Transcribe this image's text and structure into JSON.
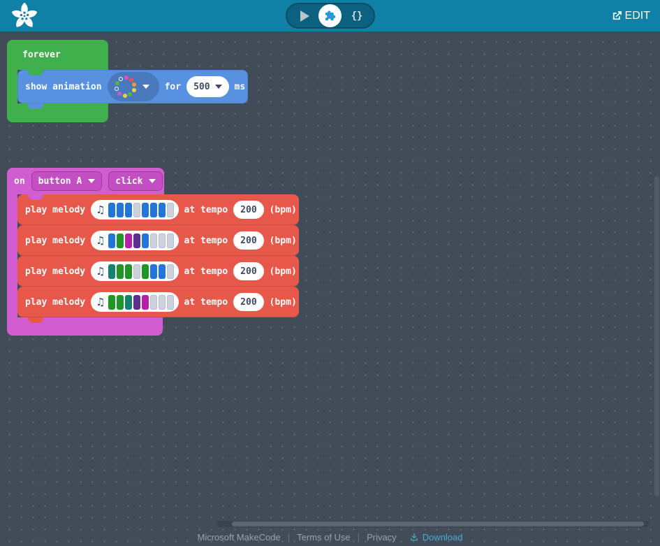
{
  "header": {
    "edit_label": "EDIT"
  },
  "sim_toolbar": {
    "js_button_label": "{}"
  },
  "workspace": {
    "forever_block": {
      "label": "forever",
      "show_animation": {
        "prefix": "show animation",
        "for_label": "for",
        "duration": "500",
        "unit": "ms",
        "animation_dots": [
          "outline",
          "#e052c4",
          "#ef4e4e",
          "#f59a23",
          "#f7d038",
          "#4db748",
          "#f7d038",
          "#c05cd8",
          "outline",
          "#4db748"
        ]
      }
    },
    "on_block": {
      "on_label": "on",
      "button_value": "button A",
      "event_value": "click",
      "melodies": [
        {
          "label": "play melody",
          "tempo_label": "at tempo",
          "tempo": "200",
          "bpm_label": "(bpm)",
          "bars": [
            "#2276d9",
            "#2276d9",
            "#2276d9",
            "empty",
            "#2276d9",
            "#2276d9",
            "#2276d9",
            "empty"
          ]
        },
        {
          "label": "play melody",
          "tempo_label": "at tempo",
          "tempo": "200",
          "bpm_label": "(bpm)",
          "bars": [
            "#2276d9",
            "#1d9626",
            "#b520a8",
            "#5c2e91",
            "#2276d9",
            "empty",
            "empty",
            "empty"
          ]
        },
        {
          "label": "play melody",
          "tempo_label": "at tempo",
          "tempo": "200",
          "bpm_label": "(bpm)",
          "bars": [
            "#12836c",
            "#1d9626",
            "#1d9626",
            "empty",
            "#1d9626",
            "#2276d9",
            "#2276d9",
            "empty"
          ]
        },
        {
          "label": "play melody",
          "tempo_label": "at tempo",
          "tempo": "200",
          "bpm_label": "(bpm)",
          "bars": [
            "#1d9626",
            "#1d9626",
            "#12836c",
            "#5c2e91",
            "#b520a8",
            "empty",
            "empty",
            "empty"
          ]
        }
      ]
    }
  },
  "footer": {
    "links": [
      "Microsoft MakeCode",
      "Terms of Use",
      "Privacy"
    ],
    "separator": "|",
    "download_label": "Download"
  },
  "colors": {
    "header_bg": "#0f81a6",
    "workspace_bg": "#424b58",
    "loops_green": "#3fb04b",
    "animation_blue": "#5791e0",
    "melody_red": "#e8584a",
    "events_purple": "#d25dd0",
    "download_teal": "#45aed0"
  }
}
